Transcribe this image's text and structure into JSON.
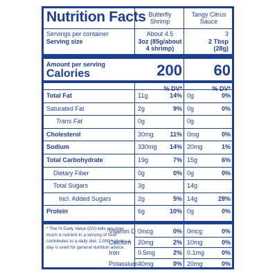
{
  "label": {
    "title": "Nutrition Facts",
    "columns": [
      {
        "name_line1": "Butterfly",
        "name_line2": "Shrimp",
        "servings": "About 4.5",
        "serving_size_line1": "3oz (85g/about",
        "serving_size_line2": "4 shrimp)",
        "calories": "200"
      },
      {
        "name_line1": "Tangy Citrus",
        "name_line2": "Sauce",
        "servings": "3",
        "serving_size_line1": "2 Tbsp",
        "serving_size_line2": "(28g)",
        "calories": "60"
      }
    ],
    "servings_label": "Servings per container",
    "serving_size_label": "Serving size",
    "amount_per_serving": "Amount per serving",
    "calories_label": "Calories",
    "dv_header": "% DV*",
    "nutrients": [
      {
        "name": "Total Fat",
        "c1_amt": "11g",
        "c1_dv": "14%",
        "c2_amt": "0g",
        "c2_dv": "0%"
      },
      {
        "name": "Saturated Fat",
        "c1_amt": "2g",
        "c1_dv": "9%",
        "c2_amt": "0g",
        "c2_dv": "0%"
      },
      {
        "name": "Trans Fat",
        "c1_amt": "0g",
        "c1_dv": "",
        "c2_amt": "0g",
        "c2_dv": ""
      },
      {
        "name": "Cholesterol",
        "c1_amt": "30mg",
        "c1_dv": "11%",
        "c2_amt": "0mg",
        "c2_dv": "0%"
      },
      {
        "name": "Sodium",
        "c1_amt": "330mg",
        "c1_dv": "14%",
        "c2_amt": "20mg",
        "c2_dv": "1%"
      },
      {
        "name": "Total Carbohydrate",
        "c1_amt": "19g",
        "c1_dv": "7%",
        "c2_amt": "15g",
        "c2_dv": "6%"
      },
      {
        "name": "Dietary Fiber",
        "c1_amt": "0g",
        "c1_dv": "0%",
        "c2_amt": "0g",
        "c2_dv": "0%"
      },
      {
        "name": "Total Sugars",
        "c1_amt": "3g",
        "c1_dv": "",
        "c2_amt": "14g",
        "c2_dv": ""
      },
      {
        "name": "Incl. Added Sugars",
        "c1_amt": "2g",
        "c1_dv": "5%",
        "c2_amt": "14g",
        "c2_dv": "28%"
      },
      {
        "name": "Protein",
        "c1_amt": "6g",
        "c1_dv": "10%",
        "c2_amt": "0g",
        "c2_dv": "0%"
      }
    ],
    "vitamins": [
      {
        "name": "Vitamin D",
        "c1_amt": "0mcg",
        "c1_dv": "0%",
        "c2_amt": "0mcg",
        "c2_dv": "0%"
      },
      {
        "name": "Calcium",
        "c1_amt": "20mg",
        "c1_dv": "2%",
        "c2_amt": "10mg",
        "c2_dv": "0%"
      },
      {
        "name": "Iron",
        "c1_amt": "0.5mg",
        "c1_dv": "2%",
        "c2_amt": "0.1mg",
        "c2_dv": "0%"
      },
      {
        "name": "Potassium",
        "c1_amt": "40mg",
        "c1_dv": "0%",
        "c2_amt": "20mg",
        "c2_dv": "0%"
      }
    ],
    "footnote": "* The % Daily Value (DV) tells you how much a nutrient in a serving of food contributes to a daily diet. 2,000 calories a day is used for general nutrition advice."
  }
}
